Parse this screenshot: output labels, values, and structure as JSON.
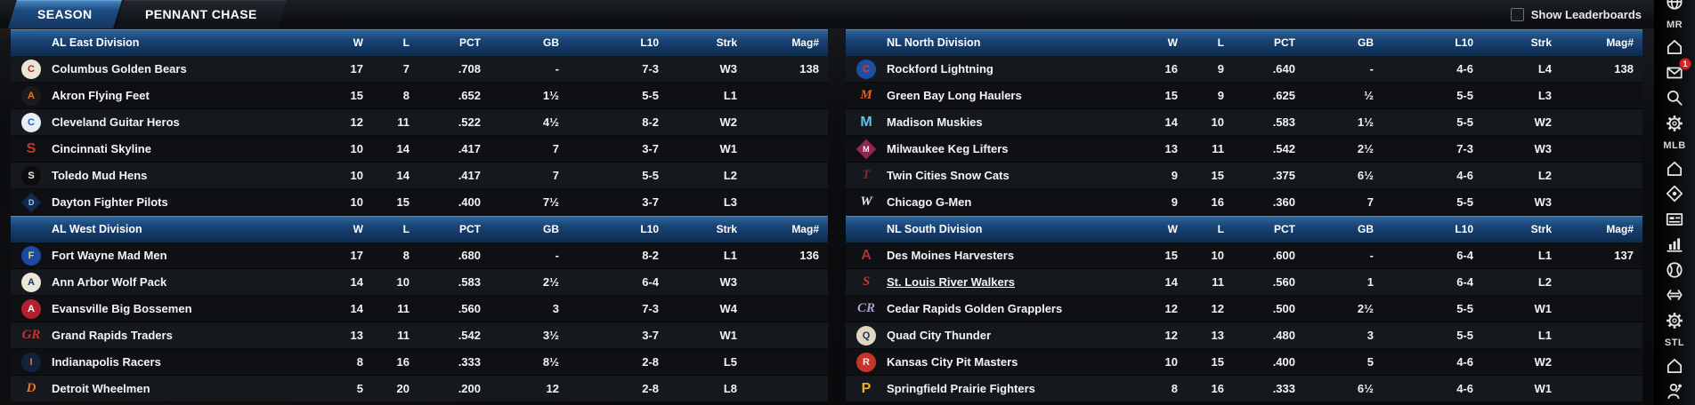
{
  "tabs": [
    {
      "label": "SEASON",
      "active": true
    },
    {
      "label": "PENNANT CHASE",
      "active": false
    }
  ],
  "show_leaderboards_label": "Show Leaderboards",
  "columns": [
    "W",
    "L",
    "PCT",
    "GB",
    "L10",
    "Strk",
    "Mag#"
  ],
  "standings": [
    {
      "divisions": [
        {
          "name": "AL East Division",
          "teams": [
            {
              "name": "Columbus Golden Bears",
              "logo": {
                "kind": "circle",
                "glyph": "C",
                "bg": "#ece4d4",
                "fg": "#a02a38"
              },
              "w": "17",
              "l": "7",
              "pct": ".708",
              "gb": "-",
              "l10": "7-3",
              "strk": "W3",
              "mag": "138",
              "underline": false
            },
            {
              "name": "Akron  Flying Feet",
              "logo": {
                "kind": "circle",
                "glyph": "A",
                "bg": "#1b1b1b",
                "fg": "#f0761e"
              },
              "w": "15",
              "l": "8",
              "pct": ".652",
              "gb": "1½",
              "l10": "5-5",
              "strk": "L1",
              "mag": "",
              "underline": false
            },
            {
              "name": "Cleveland Guitar Heros",
              "logo": {
                "kind": "circle",
                "glyph": "C",
                "bg": "#e8eef7",
                "fg": "#2a5bbf"
              },
              "w": "12",
              "l": "11",
              "pct": ".522",
              "gb": "4½",
              "l10": "8-2",
              "strk": "W2",
              "mag": "",
              "underline": false
            },
            {
              "name": "Cincinnati Skyline",
              "logo": {
                "kind": "plain",
                "glyph": "S",
                "bg": "",
                "fg": "#c0392f"
              },
              "w": "10",
              "l": "14",
              "pct": ".417",
              "gb": "7",
              "l10": "3-7",
              "strk": "W1",
              "mag": "",
              "underline": false
            },
            {
              "name": "Toledo  Mud Hens",
              "logo": {
                "kind": "circle",
                "glyph": "S",
                "bg": "#0c0c0c",
                "fg": "#f2f2f2"
              },
              "w": "10",
              "l": "14",
              "pct": ".417",
              "gb": "7",
              "l10": "5-5",
              "strk": "L2",
              "mag": "",
              "underline": false
            },
            {
              "name": "Dayton Fighter Pilots",
              "logo": {
                "kind": "diamond",
                "glyph": "D",
                "bg": "#14294e",
                "fg": "#8fd4f2"
              },
              "w": "10",
              "l": "15",
              "pct": ".400",
              "gb": "7½",
              "l10": "3-7",
              "strk": "L3",
              "mag": "",
              "underline": false
            }
          ]
        },
        {
          "name": "AL West Division",
          "teams": [
            {
              "name": "Fort Wayne Mad Men",
              "logo": {
                "kind": "circle",
                "glyph": "F",
                "bg": "#1b4aa2",
                "fg": "#f2d23c"
              },
              "w": "17",
              "l": "8",
              "pct": ".680",
              "gb": "-",
              "l10": "8-2",
              "strk": "L1",
              "mag": "136",
              "underline": false
            },
            {
              "name": "Ann Arbor Wolf Pack",
              "logo": {
                "kind": "circle",
                "glyph": "A",
                "bg": "#ece6da",
                "fg": "#1c2f5e"
              },
              "w": "14",
              "l": "10",
              "pct": ".583",
              "gb": "2½",
              "l10": "6-4",
              "strk": "W3",
              "mag": "",
              "underline": false
            },
            {
              "name": "Evansville Big Bossemen",
              "logo": {
                "kind": "circle",
                "glyph": "A",
                "bg": "#b51f30",
                "fg": "#ffffff"
              },
              "w": "14",
              "l": "11",
              "pct": ".560",
              "gb": "3",
              "l10": "7-3",
              "strk": "W4",
              "mag": "",
              "underline": false
            },
            {
              "name": "Grand Rapids Traders",
              "logo": {
                "kind": "script",
                "glyph": "GR",
                "bg": "",
                "fg": "#c8342c"
              },
              "w": "13",
              "l": "11",
              "pct": ".542",
              "gb": "3½",
              "l10": "3-7",
              "strk": "W1",
              "mag": "",
              "underline": false
            },
            {
              "name": "Indianapolis Racers",
              "logo": {
                "kind": "circle",
                "glyph": "I",
                "bg": "#10233f",
                "fg": "#f0761e"
              },
              "w": "8",
              "l": "16",
              "pct": ".333",
              "gb": "8½",
              "l10": "2-8",
              "strk": "L5",
              "mag": "",
              "underline": false
            },
            {
              "name": "Detroit Wheelmen",
              "logo": {
                "kind": "script",
                "glyph": "D",
                "bg": "",
                "fg": "#e87722"
              },
              "w": "5",
              "l": "20",
              "pct": ".200",
              "gb": "12",
              "l10": "2-8",
              "strk": "L8",
              "mag": "",
              "underline": false
            }
          ]
        }
      ]
    },
    {
      "divisions": [
        {
          "name": "NL North Division",
          "teams": [
            {
              "name": "Rockford Lightning",
              "logo": {
                "kind": "circle",
                "glyph": "C",
                "bg": "#1b4fa0",
                "fg": "#e03a3a"
              },
              "w": "16",
              "l": "9",
              "pct": ".640",
              "gb": "-",
              "l10": "4-6",
              "strk": "L4",
              "mag": "138",
              "underline": false
            },
            {
              "name": "Green Bay  Long Haulers",
              "logo": {
                "kind": "script",
                "glyph": "M",
                "bg": "",
                "fg": "#e8641e"
              },
              "w": "15",
              "l": "9",
              "pct": ".625",
              "gb": "½",
              "l10": "5-5",
              "strk": "L3",
              "mag": "",
              "underline": false
            },
            {
              "name": "Madison Muskies",
              "logo": {
                "kind": "plain",
                "glyph": "M",
                "bg": "",
                "fg": "#5bc6e8"
              },
              "w": "14",
              "l": "10",
              "pct": ".583",
              "gb": "1½",
              "l10": "5-5",
              "strk": "W2",
              "mag": "",
              "underline": false
            },
            {
              "name": "Milwaukee Keg Lifters",
              "logo": {
                "kind": "diamond",
                "glyph": "M",
                "bg": "#93264f",
                "fg": "#f0f0f0"
              },
              "w": "13",
              "l": "11",
              "pct": ".542",
              "gb": "2½",
              "l10": "7-3",
              "strk": "W3",
              "mag": "",
              "underline": false
            },
            {
              "name": "Twin Cities Snow Cats",
              "logo": {
                "kind": "script",
                "glyph": "T",
                "bg": "",
                "fg": "#7e2a33"
              },
              "w": "9",
              "l": "15",
              "pct": ".375",
              "gb": "6½",
              "l10": "4-6",
              "strk": "L2",
              "mag": "",
              "underline": false
            },
            {
              "name": "Chicago G-Men",
              "logo": {
                "kind": "script",
                "glyph": "W",
                "bg": "",
                "fg": "#e9e9e9"
              },
              "w": "9",
              "l": "16",
              "pct": ".360",
              "gb": "7",
              "l10": "5-5",
              "strk": "W3",
              "mag": "",
              "underline": false
            }
          ]
        },
        {
          "name": "NL South Division",
          "teams": [
            {
              "name": "Des Moines  Harvesters",
              "logo": {
                "kind": "plain",
                "glyph": "A",
                "bg": "",
                "fg": "#b0303a"
              },
              "w": "15",
              "l": "10",
              "pct": ".600",
              "gb": "-",
              "l10": "6-4",
              "strk": "L1",
              "mag": "137",
              "underline": false
            },
            {
              "name": "St. Louis River Walkers",
              "logo": {
                "kind": "script",
                "glyph": "S",
                "bg": "",
                "fg": "#c23b33"
              },
              "w": "14",
              "l": "11",
              "pct": ".560",
              "gb": "1",
              "l10": "6-4",
              "strk": "L2",
              "mag": "",
              "underline": true
            },
            {
              "name": "Cedar Rapids Golden Grapplers",
              "logo": {
                "kind": "script",
                "glyph": "CR",
                "bg": "",
                "fg": "#a9a4cc"
              },
              "w": "12",
              "l": "12",
              "pct": ".500",
              "gb": "2½",
              "l10": "5-5",
              "strk": "W1",
              "mag": "",
              "underline": false
            },
            {
              "name": "Quad City Thunder",
              "logo": {
                "kind": "circle",
                "glyph": "Q",
                "bg": "#dfd7c0",
                "fg": "#1c2f5e"
              },
              "w": "12",
              "l": "13",
              "pct": ".480",
              "gb": "3",
              "l10": "5-5",
              "strk": "L1",
              "mag": "",
              "underline": false
            },
            {
              "name": "Kansas City Pit Masters",
              "logo": {
                "kind": "circle",
                "glyph": "R",
                "bg": "#c8342c",
                "fg": "#efe7da"
              },
              "w": "10",
              "l": "15",
              "pct": ".400",
              "gb": "5",
              "l10": "4-6",
              "strk": "W2",
              "mag": "",
              "underline": false
            },
            {
              "name": "Springfield Prairie Fighters",
              "logo": {
                "kind": "plain",
                "glyph": "P",
                "bg": "",
                "fg": "#f2b01e"
              },
              "w": "8",
              "l": "16",
              "pct": ".333",
              "gb": "6½",
              "l10": "4-6",
              "strk": "W1",
              "mag": "",
              "underline": false
            }
          ]
        }
      ]
    }
  ],
  "sidebar": {
    "items": [
      {
        "type": "icon",
        "name": "globe-icon",
        "cut": true
      },
      {
        "type": "label",
        "text": "MR"
      },
      {
        "type": "icon",
        "name": "home-icon"
      },
      {
        "type": "icon",
        "name": "mail-icon",
        "badge": "1"
      },
      {
        "type": "icon",
        "name": "search-icon"
      },
      {
        "type": "icon",
        "name": "gear-icon"
      },
      {
        "type": "label",
        "text": "MLB"
      },
      {
        "type": "icon",
        "name": "home-icon"
      },
      {
        "type": "icon",
        "name": "ballpark-pin-icon"
      },
      {
        "type": "icon",
        "name": "scoreboard-card-icon"
      },
      {
        "type": "icon",
        "name": "stats-chart-icon"
      },
      {
        "type": "icon",
        "name": "baseball-icon"
      },
      {
        "type": "icon",
        "name": "transactions-icon"
      },
      {
        "type": "icon",
        "name": "gear-icon"
      },
      {
        "type": "label",
        "text": "STL"
      },
      {
        "type": "icon",
        "name": "home-icon"
      },
      {
        "type": "icon",
        "name": "manager-icon"
      }
    ]
  }
}
